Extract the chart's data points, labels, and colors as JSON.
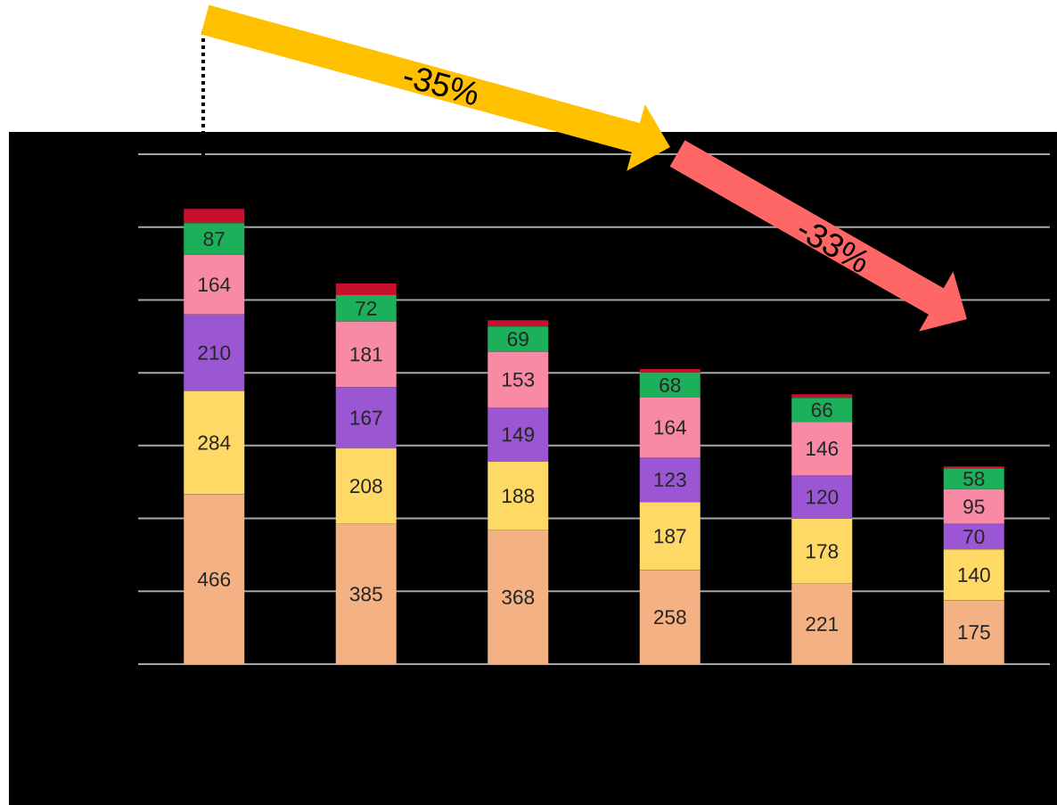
{
  "chart_data": {
    "type": "bar",
    "stacked": true,
    "categories": [
      null,
      null,
      null,
      null,
      null,
      null
    ],
    "series": [
      {
        "color": "#f4b183",
        "values": [
          466,
          385,
          368,
          258,
          221,
          175
        ],
        "value_labels": [
          "466",
          "385",
          "368",
          "258",
          "221",
          "175"
        ]
      },
      {
        "color": "#ffd966",
        "values": [
          284,
          208,
          188,
          187,
          178,
          140
        ],
        "value_labels": [
          "284",
          "208",
          "188",
          "187",
          "178",
          "140"
        ]
      },
      {
        "color": "#9b57d3",
        "values": [
          210,
          167,
          149,
          123,
          120,
          70
        ],
        "value_labels": [
          "210",
          "167",
          "149",
          "123",
          "120",
          "70"
        ]
      },
      {
        "color": "#f98aa6",
        "values": [
          164,
          181,
          153,
          164,
          146,
          95
        ],
        "value_labels": [
          "164",
          "181",
          "153",
          "164",
          "146",
          "95"
        ]
      },
      {
        "color": "#1db05a",
        "values": [
          87,
          72,
          69,
          68,
          66,
          58
        ],
        "value_labels": [
          "87",
          "72",
          "69",
          "68",
          "66",
          "58"
        ]
      },
      {
        "color": "#c8102e",
        "values": [
          39,
          32,
          17,
          10,
          10,
          5
        ]
      }
    ],
    "ylim": [
      0,
      1400
    ],
    "yticks": [
      {
        "value": 0,
        "label": null
      },
      {
        "value": 200,
        "label": null
      },
      {
        "value": 400,
        "label": null
      },
      {
        "value": 600,
        "label": null
      },
      {
        "value": 800,
        "label": null
      },
      {
        "value": 1000,
        "label": null
      },
      {
        "value": 1200,
        "label": null
      },
      {
        "value": 1400,
        "label": null
      }
    ],
    "grid": "y",
    "annotations": [
      "-35%",
      "-33%"
    ]
  }
}
